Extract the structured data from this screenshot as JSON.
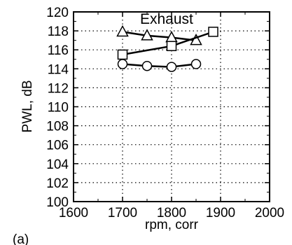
{
  "panel_label": "(a)",
  "chart_data": {
    "type": "line",
    "title": "",
    "annotation": "Exhaust",
    "xlabel": "rpm, corr",
    "ylabel": "PWL, dB",
    "xlim": [
      1600,
      2000
    ],
    "ylim": [
      100,
      120
    ],
    "xticks": [
      "1600",
      "1700",
      "1800",
      "1900",
      "2000"
    ],
    "yticks": [
      "100",
      "102",
      "104",
      "106",
      "108",
      "110",
      "112",
      "114",
      "116",
      "118",
      "120"
    ],
    "grid": true,
    "series": [
      {
        "marker": "triangle",
        "x": [
          1700,
          1750,
          1800,
          1850
        ],
        "y": [
          117.9,
          117.5,
          117.3,
          117.0
        ]
      },
      {
        "marker": "square",
        "x": [
          1700,
          1800,
          1885
        ],
        "y": [
          115.5,
          116.4,
          117.9
        ]
      },
      {
        "marker": "circle",
        "x": [
          1700,
          1750,
          1800,
          1850
        ],
        "y": [
          114.5,
          114.3,
          114.2,
          114.5
        ]
      }
    ]
  }
}
